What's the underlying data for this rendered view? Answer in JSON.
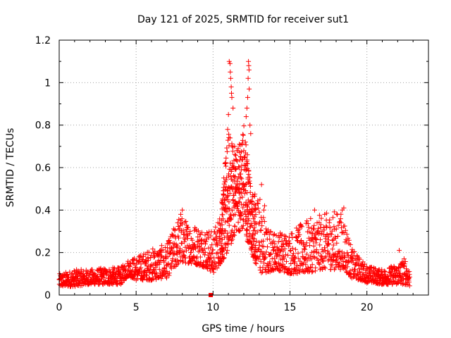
{
  "chart_data": {
    "type": "scatter",
    "title": "Day 121 of 2025, SRMTID for receiver sut1",
    "xlabel": "GPS time / hours",
    "ylabel": "SRMTID / TECUs",
    "xlim": [
      0,
      24
    ],
    "ylim": [
      0,
      1.2
    ],
    "x_ticks": [
      0,
      5,
      10,
      15,
      20
    ],
    "x_tick_labels": [
      "0",
      "5",
      "10",
      "15",
      "20"
    ],
    "y_ticks": [
      0,
      0.2,
      0.4,
      0.6,
      0.8,
      1.0,
      1.2
    ],
    "y_tick_labels": [
      "0",
      "0.2",
      "0.4",
      "0.6",
      "0.8",
      "1",
      "1.2"
    ],
    "grid": true,
    "marker": "plus",
    "color": "#ff0000",
    "envelope": {
      "x": [
        0.0,
        1.0,
        2.0,
        3.0,
        4.0,
        4.5,
        5.0,
        6.0,
        7.0,
        7.8,
        8.5,
        9.5,
        10.0,
        10.5,
        11.0,
        11.5,
        12.0,
        12.5,
        13.0,
        13.5,
        14.0,
        15.0,
        16.0,
        17.0,
        18.0,
        18.5,
        19.0,
        20.0,
        21.0,
        22.0,
        22.5,
        22.8
      ],
      "low": [
        0.04,
        0.04,
        0.05,
        0.05,
        0.05,
        0.09,
        0.07,
        0.07,
        0.08,
        0.15,
        0.15,
        0.13,
        0.1,
        0.15,
        0.2,
        0.3,
        0.3,
        0.2,
        0.1,
        0.1,
        0.12,
        0.1,
        0.1,
        0.12,
        0.12,
        0.12,
        0.08,
        0.06,
        0.05,
        0.05,
        0.05,
        0.04
      ],
      "high": [
        0.1,
        0.12,
        0.12,
        0.13,
        0.13,
        0.17,
        0.18,
        0.22,
        0.24,
        0.38,
        0.34,
        0.32,
        0.3,
        0.4,
        0.8,
        0.65,
        0.8,
        0.5,
        0.45,
        0.32,
        0.3,
        0.3,
        0.35,
        0.38,
        0.4,
        0.38,
        0.22,
        0.14,
        0.12,
        0.15,
        0.18,
        0.12
      ]
    },
    "spikes": [
      {
        "x": 11.05,
        "y": 1.1
      },
      {
        "x": 11.1,
        "y": 1.09
      },
      {
        "x": 11.12,
        "y": 1.05
      },
      {
        "x": 11.15,
        "y": 1.02
      },
      {
        "x": 11.18,
        "y": 0.98
      },
      {
        "x": 11.2,
        "y": 0.95
      },
      {
        "x": 11.22,
        "y": 0.93
      },
      {
        "x": 11.0,
        "y": 0.85
      },
      {
        "x": 11.3,
        "y": 0.88
      },
      {
        "x": 10.95,
        "y": 0.78
      },
      {
        "x": 11.4,
        "y": 0.7
      },
      {
        "x": 11.55,
        "y": 0.68
      },
      {
        "x": 12.3,
        "y": 1.1
      },
      {
        "x": 12.32,
        "y": 1.08
      },
      {
        "x": 12.34,
        "y": 1.06
      },
      {
        "x": 12.28,
        "y": 1.02
      },
      {
        "x": 12.35,
        "y": 0.97
      },
      {
        "x": 12.25,
        "y": 0.93
      },
      {
        "x": 12.2,
        "y": 0.88
      },
      {
        "x": 12.15,
        "y": 0.84
      },
      {
        "x": 12.4,
        "y": 0.8
      },
      {
        "x": 12.45,
        "y": 0.76
      },
      {
        "x": 12.1,
        "y": 0.72
      },
      {
        "x": 12.0,
        "y": 0.68
      },
      {
        "x": 11.8,
        "y": 0.65
      },
      {
        "x": 11.7,
        "y": 0.6
      },
      {
        "x": 13.15,
        "y": 0.52
      },
      {
        "x": 13.05,
        "y": 0.45
      },
      {
        "x": 13.3,
        "y": 0.4
      },
      {
        "x": 13.35,
        "y": 0.42
      },
      {
        "x": 18.5,
        "y": 0.41
      },
      {
        "x": 18.4,
        "y": 0.4
      },
      {
        "x": 16.6,
        "y": 0.4
      },
      {
        "x": 8.0,
        "y": 0.4
      },
      {
        "x": 7.9,
        "y": 0.38
      },
      {
        "x": 22.1,
        "y": 0.21
      }
    ],
    "outliers": [
      {
        "x": 9.85,
        "y": 0.0
      }
    ]
  }
}
